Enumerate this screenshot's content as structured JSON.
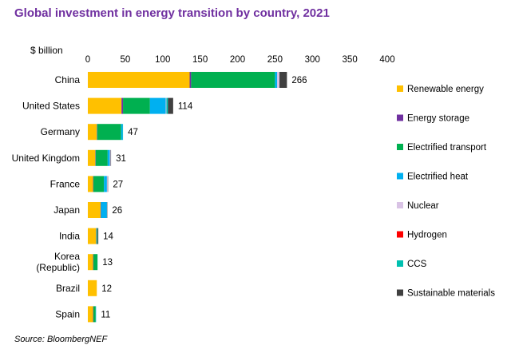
{
  "title": "Global investment in energy transition by country, 2021",
  "unit": "$ billion",
  "source": "Source: BloombergNEF",
  "chart_data": {
    "type": "bar",
    "orientation": "horizontal",
    "stacked": true,
    "title": "Global investment in energy transition by country, 2021",
    "xlabel": "$ billion",
    "xlim": [
      0,
      400
    ],
    "xticks": [
      "0",
      "50",
      "100",
      "150",
      "200",
      "250",
      "300",
      "350",
      "400"
    ],
    "grid": false,
    "legend_position": "right",
    "categories": [
      "China",
      "United States",
      "Germany",
      "United Kingdom",
      "France",
      "Japan",
      "India",
      "Korea (Republic)",
      "Brazil",
      "Spain"
    ],
    "category_lines": [
      [
        "China"
      ],
      [
        "United States"
      ],
      [
        "Germany"
      ],
      [
        "United Kingdom"
      ],
      [
        "France"
      ],
      [
        "Japan"
      ],
      [
        "India"
      ],
      [
        "Korea",
        "(Republic)"
      ],
      [
        "Brazil"
      ],
      [
        "Spain"
      ]
    ],
    "totals": [
      "266",
      "114",
      "47",
      "31",
      "27",
      "26",
      "14",
      "13",
      "12",
      "11"
    ],
    "series": [
      {
        "name": "Renewable energy",
        "color": "#ffc000",
        "values": [
          136,
          45,
          12,
          10,
          7,
          17,
          11,
          7,
          12,
          7
        ]
      },
      {
        "name": "Energy storage",
        "color": "#7030a0",
        "values": [
          2,
          2,
          0.5,
          0.5,
          0.5,
          0.5,
          0.5,
          0.5,
          0,
          0.5
        ]
      },
      {
        "name": "Electrified transport",
        "color": "#00b050",
        "values": [
          112,
          36,
          32,
          16,
          14,
          0,
          1,
          5.5,
          0,
          3
        ]
      },
      {
        "name": "Electrified heat",
        "color": "#00b0f0",
        "values": [
          3,
          21,
          2,
          3,
          4,
          8,
          0.5,
          0,
          0,
          0.5
        ]
      },
      {
        "name": "Nuclear",
        "color": "#d9c3e5",
        "values": [
          3,
          1,
          0,
          1,
          1,
          0,
          0,
          0,
          0,
          0
        ]
      },
      {
        "name": "Hydrogen",
        "color": "#ff0000",
        "values": [
          0,
          0,
          0,
          0,
          0,
          0,
          0,
          0,
          0,
          0
        ]
      },
      {
        "name": "CCS",
        "color": "#00c0b0",
        "values": [
          0,
          2,
          0.5,
          0,
          0,
          0,
          0,
          0,
          0,
          0
        ]
      },
      {
        "name": "Sustainable materials",
        "color": "#404040",
        "values": [
          10,
          7,
          0,
          0.5,
          0.5,
          0.5,
          1,
          0,
          0,
          0
        ]
      }
    ]
  }
}
